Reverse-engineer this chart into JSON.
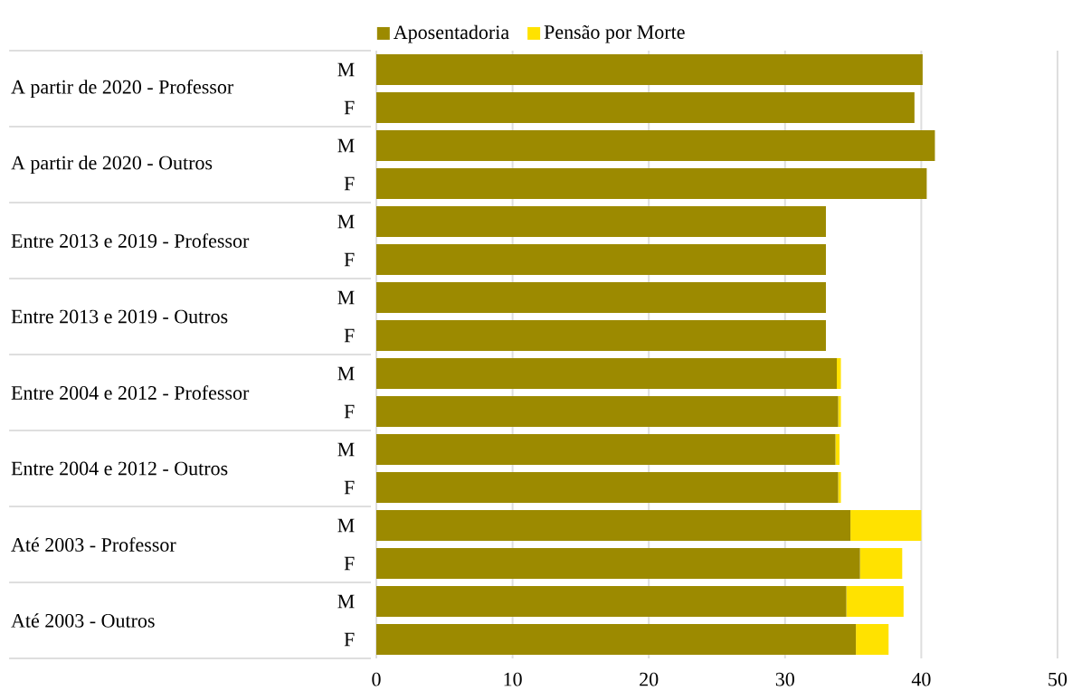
{
  "chart_data": {
    "type": "bar",
    "orientation": "horizontal",
    "stacked": true,
    "categories": [
      "M",
      "F",
      "M",
      "F",
      "M",
      "F",
      "M",
      "F",
      "M",
      "F",
      "M",
      "F",
      "M",
      "F",
      "M",
      "F"
    ],
    "annotations": [
      "A partir de 2020 - Professor",
      "A partir de 2020 - Outros",
      "Entre 2013 e 2019 - Professor",
      "Entre 2013 e 2019 - Outros",
      "Entre 2004 e 2012 - Professor",
      "Entre 2004 e 2012 - Outros",
      "Até 2003 - Professor",
      "Até 2003 - Outros"
    ],
    "series": [
      {
        "name": "Aposentadoria",
        "color": "#9c8a00",
        "values": [
          40.1,
          39.5,
          41.0,
          40.4,
          33.0,
          33.0,
          33.0,
          33.0,
          33.8,
          33.9,
          33.7,
          33.9,
          34.8,
          35.5,
          34.5,
          35.2
        ]
      },
      {
        "name": "Pensão por Morte",
        "color": "#ffe200",
        "values": [
          0,
          0,
          0,
          0,
          0,
          0,
          0,
          0,
          0.3,
          0.2,
          0.3,
          0.2,
          5.2,
          3.1,
          4.2,
          2.4
        ]
      }
    ],
    "xlim": [
      0,
      50
    ],
    "xticks": [
      0,
      10,
      20,
      30,
      40,
      50
    ],
    "grid": "x",
    "legend": "top"
  }
}
